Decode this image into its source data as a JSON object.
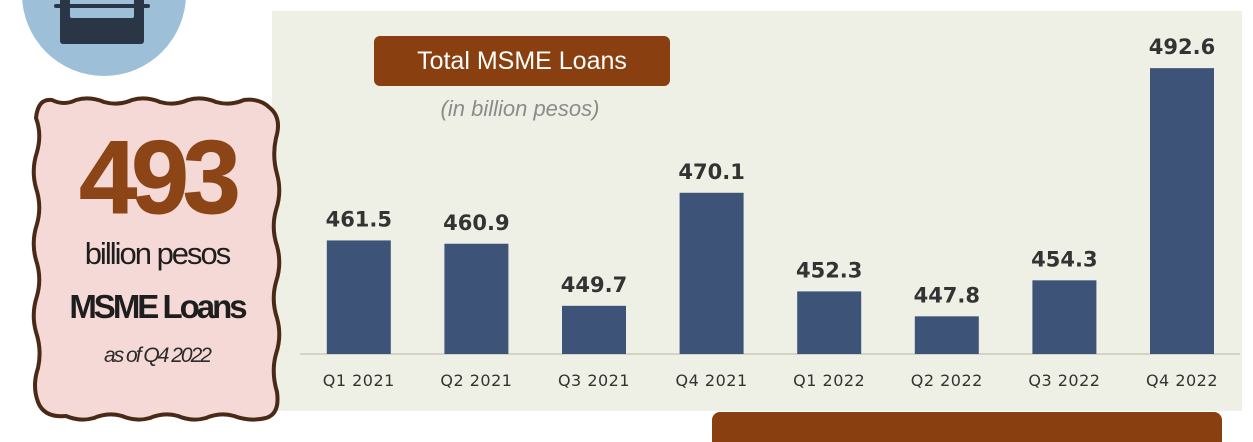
{
  "stat": {
    "value": "493",
    "unit": "billion pesos",
    "label": "MSME Loans",
    "date": "as of Q4 2022"
  },
  "colors": {
    "bar": "#3d5478",
    "accent_brown": "#8a3f10",
    "panel_bg": "#eff0e5",
    "card_bg": "#f5d9d6",
    "card_border": "#4a2a17",
    "icon_circle": "#9dbfd8"
  },
  "icons": [
    "briefcase-icon"
  ],
  "chart_data": {
    "type": "bar",
    "title": "Total MSME Loans",
    "subtitle": "(in billion pesos)",
    "categories": [
      "Q1 2021",
      "Q2 2021",
      "Q3 2021",
      "Q4 2021",
      "Q1 2022",
      "Q2 2022",
      "Q3 2022",
      "Q4 2022"
    ],
    "values": [
      461.5,
      460.9,
      449.7,
      470.1,
      452.3,
      447.8,
      454.3,
      492.6
    ],
    "value_labels": [
      "461.5",
      "460.9",
      "449.7",
      "470.1",
      "452.3",
      "447.8",
      "454.3",
      "492.6"
    ],
    "grid": false,
    "legend": "none"
  }
}
